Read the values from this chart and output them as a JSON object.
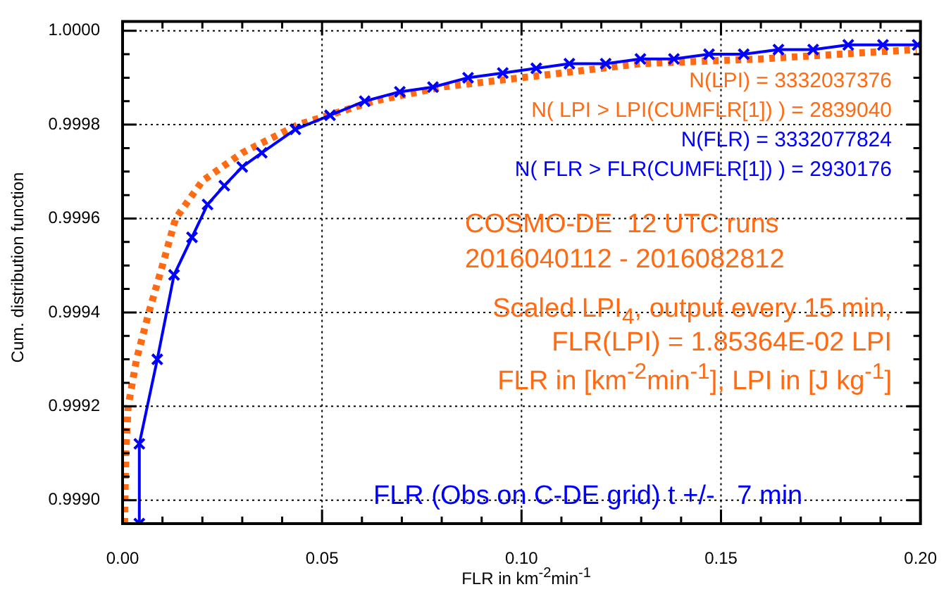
{
  "chart_data": {
    "type": "line",
    "xlabel": "FLR in km$^{-2}$min$^{-1}$",
    "ylabel": "Cum. distribution function",
    "series": [
      {
        "color": "#0000ff",
        "marker": "cross",
        "line_style": "solid",
        "x": [
          0.0042,
          0.0042,
          0.0087,
          0.0129,
          0.0174,
          0.0213,
          0.0255,
          0.03,
          0.0349,
          0.0433,
          0.052,
          0.0607,
          0.0695,
          0.0778,
          0.0866,
          0.0953,
          0.1037,
          0.112,
          0.1211,
          0.1298,
          0.1382,
          0.147,
          0.1557,
          0.1644,
          0.1731,
          0.1819,
          0.1906,
          0.1993
        ],
        "values": [
          0.99895,
          0.99912,
          0.9993,
          0.99948,
          0.99956,
          0.99963,
          0.99967,
          0.99971,
          0.99974,
          0.99979,
          0.99982,
          0.99985,
          0.99987,
          0.99988,
          0.9999,
          0.99991,
          0.99992,
          0.99993,
          0.99993,
          0.99994,
          0.99994,
          0.99995,
          0.99995,
          0.99996,
          0.99996,
          0.99997,
          0.99997,
          0.99997
        ]
      },
      {
        "color": "#ff6a13",
        "marker": "none",
        "line_style": "dotted",
        "x": [
          0.0005,
          0.0008,
          0.0014,
          0.0035,
          0.0066,
          0.01,
          0.0133,
          0.02,
          0.03,
          0.044,
          0.063,
          0.08,
          0.1,
          0.13,
          0.16,
          0.199
        ],
        "values": [
          0.99895,
          0.9991,
          0.9992,
          0.9993,
          0.9994,
          0.9995,
          0.9996,
          0.99968,
          0.99974,
          0.9998,
          0.99985,
          0.99988,
          0.9999,
          0.99993,
          0.99994,
          0.99996
        ]
      }
    ],
    "xlim": [
      0,
      0.2
    ],
    "xticks": [
      {
        "value": 0,
        "label": "0.00"
      },
      {
        "value": 0.01,
        "label": null
      },
      {
        "value": 0.02,
        "label": null
      },
      {
        "value": 0.03,
        "label": null
      },
      {
        "value": 0.04,
        "label": null
      },
      0.05,
      {
        "value": 0.06,
        "label": null
      },
      {
        "value": 0.07,
        "label": null
      },
      {
        "value": 0.08,
        "label": null
      },
      {
        "value": 0.09,
        "label": null
      },
      {
        "value": 0.1,
        "label": "0.10"
      },
      {
        "value": 0.11,
        "label": null
      },
      {
        "value": 0.12,
        "label": null
      },
      {
        "value": 0.13,
        "label": null
      },
      {
        "value": 0.14,
        "label": null
      },
      0.15,
      {
        "value": 0.16,
        "label": null
      },
      {
        "value": 0.17,
        "label": null
      },
      {
        "value": 0.18,
        "label": null
      },
      {
        "value": 0.19,
        "label": null
      },
      {
        "value": 0.2,
        "label": "0.20"
      }
    ],
    "ylim": [
      0.99895,
      1.00002
    ],
    "yticks": [
      {
        "value": 0.999,
        "label": "0.9990"
      },
      {
        "value": 0.99905,
        "label": null
      },
      {
        "value": 0.9991,
        "label": null
      },
      {
        "value": 0.99915,
        "label": null
      },
      0.9992,
      {
        "value": 0.99925,
        "label": null
      },
      {
        "value": 0.9993,
        "label": null
      },
      {
        "value": 0.99935,
        "label": null
      },
      0.9994,
      {
        "value": 0.99945,
        "label": null
      },
      {
        "value": 0.9995,
        "label": null
      },
      {
        "value": 0.99955,
        "label": null
      },
      0.9996,
      {
        "value": 0.99965,
        "label": null
      },
      {
        "value": 0.9997,
        "label": null
      },
      {
        "value": 0.99975,
        "label": null
      },
      0.9998,
      {
        "value": 0.99985,
        "label": null
      },
      {
        "value": 0.9999,
        "label": null
      },
      {
        "value": 0.99995,
        "label": null
      },
      {
        "value": 1,
        "label": "1.0000"
      }
    ],
    "grid": true,
    "legend": false,
    "annotations": [
      "N(LPI) = 3332037376",
      "N( LPI > LPI(CUMFLR[1]) ) = 2839040",
      "N(FLR) = 3332077824",
      "N( FLR > FLR(CUMFLR[1]) ) = 2930176",
      "COSMO-DE  12 UTC runs",
      "2016040112 - 2016082812",
      "Scaled LPI$_{4}$, output every 15 min,",
      "FLR(LPI) = 1.85364E-02 LPI",
      "FLR in [km$^{-2}$min$^{-1}$], LPI in [J kg$^{-1}$]",
      "FLR (Obs on C-DE grid) t +/-   7 min"
    ]
  }
}
